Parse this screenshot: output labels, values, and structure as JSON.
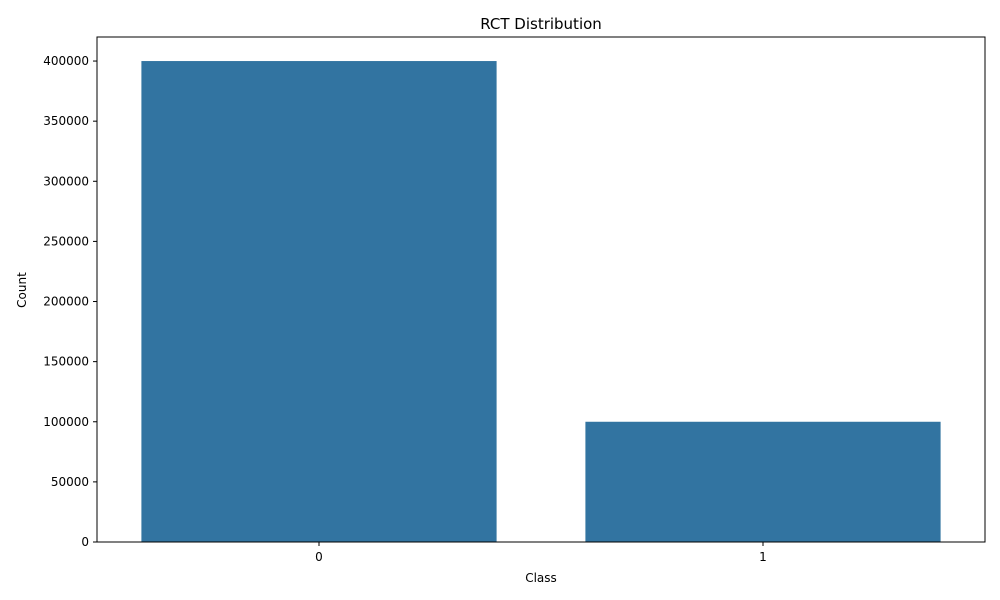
{
  "chart_data": {
    "type": "bar",
    "title": "RCT Distribution",
    "xlabel": "Class",
    "ylabel": "Count",
    "categories": [
      "0",
      "1"
    ],
    "values": [
      400000,
      100000
    ],
    "ylim": [
      0,
      420000
    ],
    "yticks": [
      0,
      50000,
      100000,
      150000,
      200000,
      250000,
      300000,
      350000,
      400000
    ],
    "bar_color": "#3274a1",
    "grid": false,
    "legend": "none"
  }
}
